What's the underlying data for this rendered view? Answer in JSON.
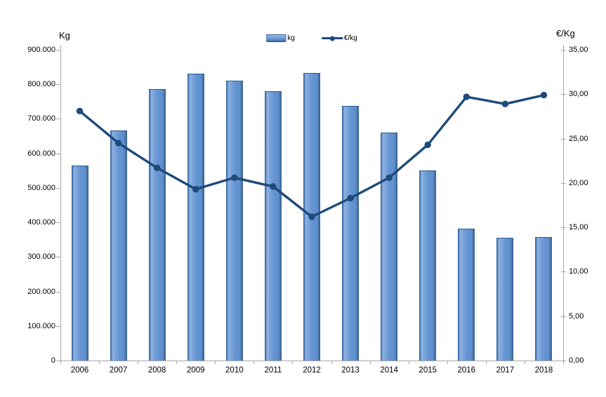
{
  "axes": {
    "left": {
      "title": "Kg",
      "tick_labels": [
        "900.000",
        "800.000",
        "700.000",
        "600.000",
        "500.000",
        "400.000",
        "300.000",
        "200.000",
        "100.000",
        "0"
      ]
    },
    "right": {
      "title": "€/Kg",
      "tick_labels": [
        "35,00",
        "30,00",
        "25,00",
        "20,00",
        "15,00",
        "10,00",
        "5,00",
        "0,00"
      ]
    },
    "x": {
      "tick_labels": [
        "2006",
        "2007",
        "2008",
        "2009",
        "2010",
        "2011",
        "2012",
        "2013",
        "2014",
        "2015",
        "2016",
        "2017",
        "2018"
      ]
    }
  },
  "legend": {
    "items": [
      {
        "label": "kg",
        "marker": "bar-swatch"
      },
      {
        "label": "€/kg",
        "marker": "line-with-dot"
      }
    ]
  },
  "chart_data": {
    "type": "combo",
    "title": "",
    "categories": [
      2006,
      2007,
      2008,
      2009,
      2010,
      2011,
      2012,
      2013,
      2014,
      2015,
      2016,
      2017,
      2018
    ],
    "series": [
      {
        "name": "kg",
        "type": "bar",
        "y_axis": "left",
        "values": [
          563000,
          664000,
          785000,
          828000,
          809000,
          778000,
          831000,
          736000,
          659000,
          548000,
          380000,
          353000,
          355000
        ]
      },
      {
        "name": "€/kg",
        "type": "line",
        "y_axis": "right",
        "values": [
          28.1,
          24.5,
          21.7,
          19.3,
          20.6,
          19.6,
          16.2,
          18.3,
          20.6,
          24.3,
          29.7,
          28.9,
          29.9
        ]
      }
    ],
    "left_axis_label": "Kg",
    "right_axis_label": "€/Kg",
    "left_ylim": [
      0,
      900000
    ],
    "left_tick_step": 100000,
    "right_ylim": [
      0,
      35
    ],
    "right_tick_step": 5,
    "grid": false,
    "legend_position": "top-center",
    "number_format": {
      "left": "dot thousands separator",
      "right": "comma decimal, 2 places"
    }
  },
  "colors": {
    "bar_fill": "#6191ce",
    "bar_highlight": "#8fb4e3",
    "bar_edge_dark": "#2e5a92",
    "line": "#1d4a7a",
    "axis": "#a6a6a6",
    "text": "#000000"
  }
}
